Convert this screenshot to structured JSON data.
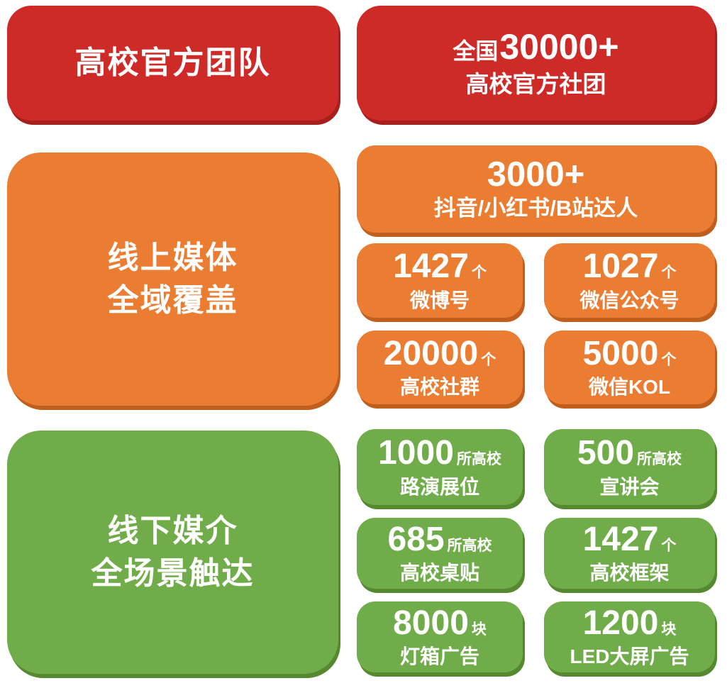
{
  "colors": {
    "red": "#CE2B28",
    "red_dark": "#A8201E",
    "orange": "#EB7D33",
    "orange_dark": "#C05F1D",
    "green": "#71AC4A",
    "green_dark": "#55882F",
    "text": "#FFFFFF",
    "background": "#FFFFFF"
  },
  "sections": [
    {
      "id": "official-team",
      "color": "red",
      "label": {
        "lines": [
          "高校官方团队"
        ]
      },
      "cards": [
        {
          "prefix": "全国",
          "number": "30000+",
          "unit": "",
          "label": "高校官方社团"
        }
      ]
    },
    {
      "id": "online-media",
      "color": "orange",
      "label": {
        "lines": [
          "线上媒体",
          "全域覆盖"
        ]
      },
      "cards": [
        {
          "prefix": "",
          "number": "3000+",
          "unit": "",
          "label": "抖音/小红书/B站达人"
        },
        {
          "prefix": "",
          "number": "1427",
          "unit": "个",
          "label": "微博号"
        },
        {
          "prefix": "",
          "number": "1027",
          "unit": "个",
          "label": "微信公众号"
        },
        {
          "prefix": "",
          "number": "20000",
          "unit": "个",
          "label": "高校社群"
        },
        {
          "prefix": "",
          "number": "5000",
          "unit": "个",
          "label": "微信KOL"
        }
      ]
    },
    {
      "id": "offline-media",
      "color": "green",
      "label": {
        "lines": [
          "线下媒介",
          "全场景触达"
        ]
      },
      "cards": [
        {
          "prefix": "",
          "number": "1000",
          "unit": "所高校",
          "label": "路演展位"
        },
        {
          "prefix": "",
          "number": "500",
          "unit": "所高校",
          "label": "宣讲会"
        },
        {
          "prefix": "",
          "number": "685",
          "unit": "所高校",
          "label": "高校桌贴"
        },
        {
          "prefix": "",
          "number": "1427",
          "unit": "个",
          "label": "高校框架"
        },
        {
          "prefix": "",
          "number": "8000",
          "unit": "块",
          "label": "灯箱广告"
        },
        {
          "prefix": "",
          "number": "1200",
          "unit": "块",
          "label": "LED大屏广告"
        }
      ]
    }
  ]
}
